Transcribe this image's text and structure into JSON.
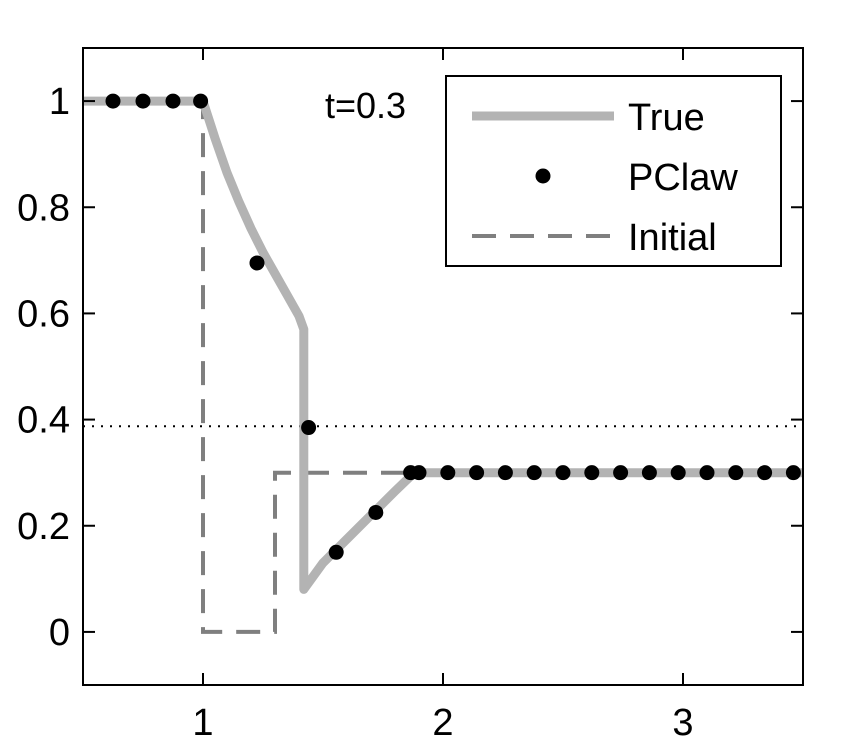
{
  "chart_data": {
    "type": "line",
    "xlim": [
      0.5,
      3.5
    ],
    "ylim": [
      -0.1,
      1.1
    ],
    "x_ticks": [
      1,
      2,
      3
    ],
    "y_ticks": [
      0,
      0.2,
      0.4,
      0.6,
      0.8,
      1
    ],
    "x_tick_labels": [
      "1",
      "2",
      "3"
    ],
    "y_tick_labels": [
      "0",
      "0.2",
      "0.4",
      "0.6",
      "0.8",
      "1"
    ],
    "annotation": "t=0.3",
    "reference_line": {
      "y": 0.3875,
      "style": "dotted",
      "color": "#000000"
    },
    "legend": {
      "placement": "top-right"
    },
    "series": [
      {
        "name": "True",
        "style": "solid-thick",
        "color": "#b3b3b3",
        "points": [
          [
            0.5,
            1
          ],
          [
            1.0,
            1
          ],
          [
            1.05,
            0.93
          ],
          [
            1.1,
            0.865
          ],
          [
            1.15,
            0.81
          ],
          [
            1.2,
            0.76
          ],
          [
            1.25,
            0.715
          ],
          [
            1.3,
            0.675
          ],
          [
            1.35,
            0.635
          ],
          [
            1.4,
            0.595
          ],
          [
            1.42,
            0.57
          ],
          [
            1.42,
            0.08
          ],
          [
            1.5,
            0.13
          ],
          [
            1.6,
            0.175
          ],
          [
            1.7,
            0.22
          ],
          [
            1.8,
            0.265
          ],
          [
            1.88,
            0.3
          ],
          [
            3.5,
            0.3
          ]
        ]
      },
      {
        "name": "PClaw",
        "style": "markers",
        "color": "#000000",
        "points": [
          [
            0.625,
            1
          ],
          [
            0.75,
            1
          ],
          [
            0.875,
            1
          ],
          [
            0.99,
            1
          ],
          [
            1.225,
            0.695
          ],
          [
            1.44,
            0.385
          ],
          [
            1.555,
            0.15
          ],
          [
            1.72,
            0.225
          ],
          [
            1.865,
            0.3
          ],
          [
            1.9,
            0.3
          ],
          [
            2.02,
            0.3
          ],
          [
            2.14,
            0.3
          ],
          [
            2.26,
            0.3
          ],
          [
            2.38,
            0.3
          ],
          [
            2.5,
            0.3
          ],
          [
            2.62,
            0.3
          ],
          [
            2.74,
            0.3
          ],
          [
            2.86,
            0.3
          ],
          [
            2.98,
            0.3
          ],
          [
            3.1,
            0.3
          ],
          [
            3.22,
            0.3
          ],
          [
            3.34,
            0.3
          ],
          [
            3.46,
            0.3
          ]
        ]
      },
      {
        "name": "Initial",
        "style": "dashed",
        "color": "#7f7f7f",
        "points": [
          [
            0.5,
            1
          ],
          [
            1.0,
            1
          ],
          [
            1.0,
            0
          ],
          [
            1.3,
            0
          ],
          [
            1.3,
            0.3
          ],
          [
            3.5,
            0.3
          ]
        ]
      }
    ]
  }
}
